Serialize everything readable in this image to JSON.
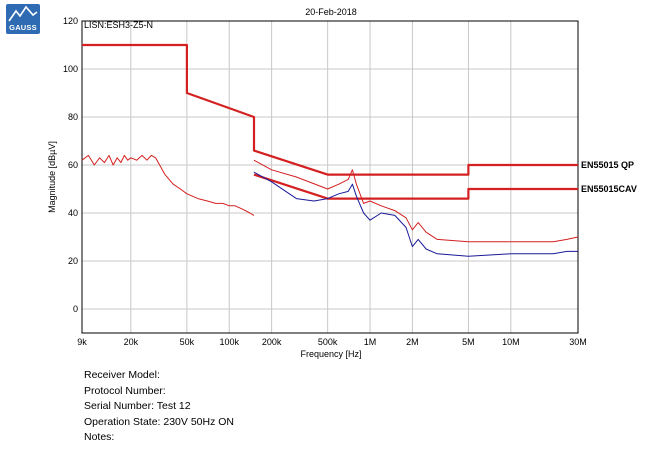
{
  "logo": {
    "text": "GAUSS"
  },
  "header": {
    "date": "20-Feb-2018",
    "plot_label": "LISN:ESH3-Z5-N"
  },
  "info": {
    "receiver_model": "Receiver Model:",
    "protocol_number": "Protocol Number:",
    "serial_number": "Serial Number: Test 12",
    "operation_state": "Operation State: 230V 50Hz ON",
    "notes": "Notes:"
  },
  "colors": {
    "red": "#d42020",
    "blue": "#1a1a9a",
    "grid": "#c8c8c8"
  },
  "chart_data": {
    "type": "line",
    "title": "20-Feb-2018",
    "xlabel": "Frequency [Hz]",
    "ylabel": "Magnitude [dBµV]",
    "xscale": "log",
    "xlim": [
      9000,
      30000000
    ],
    "ylim": [
      -10,
      120
    ],
    "grid": true,
    "x_ticks": [
      {
        "v": 9000,
        "label": "9k"
      },
      {
        "v": 20000,
        "label": "20k"
      },
      {
        "v": 50000,
        "label": "50k"
      },
      {
        "v": 100000,
        "label": "100k"
      },
      {
        "v": 200000,
        "label": "200k"
      },
      {
        "v": 500000,
        "label": "500k"
      },
      {
        "v": 1000000,
        "label": "1M"
      },
      {
        "v": 2000000,
        "label": "2M"
      },
      {
        "v": 5000000,
        "label": "5M"
      },
      {
        "v": 10000000,
        "label": "10M"
      },
      {
        "v": 30000000,
        "label": "30M"
      }
    ],
    "y_ticks": [
      0,
      20,
      40,
      60,
      80,
      100,
      120
    ],
    "series": [
      {
        "name": "EN55015 QP",
        "role": "limit",
        "color": "#d42020",
        "x": [
          9000,
          50000,
          50000,
          150000,
          150000,
          500000,
          5000000,
          5000000,
          30000000
        ],
        "y": [
          110,
          110,
          90,
          80,
          66,
          56,
          56,
          60,
          60
        ]
      },
      {
        "name": "EN55015CAV",
        "role": "limit",
        "color": "#d42020",
        "x": [
          150000,
          500000,
          5000000,
          5000000,
          30000000
        ],
        "y": [
          56,
          46,
          46,
          50,
          50
        ]
      },
      {
        "role": "peak",
        "color": "#d42020",
        "x": [
          9000,
          10000,
          11000,
          12000,
          13000,
          14000,
          15000,
          16000,
          17000,
          18000,
          19000,
          20000,
          22000,
          24000,
          26000,
          28000,
          30000,
          35000,
          40000,
          45000,
          50000,
          60000,
          70000,
          80000,
          90000,
          100000,
          110000,
          120000,
          130000,
          140000,
          150000
        ],
        "y": [
          62,
          64,
          60,
          63,
          61,
          64,
          60,
          63,
          61,
          64,
          62,
          63,
          62,
          64,
          62,
          64,
          63,
          56,
          52,
          50,
          48,
          46,
          45,
          44,
          44,
          43,
          43,
          42,
          41,
          40,
          39
        ]
      },
      {
        "role": "qp",
        "color": "#d42020",
        "x": [
          150000,
          200000,
          300000,
          500000,
          600000,
          700000,
          750000,
          800000,
          900000,
          1000000,
          1200000,
          1500000,
          1800000,
          2000000,
          2200000,
          2500000,
          3000000,
          5000000,
          10000000,
          20000000,
          25000000,
          30000000
        ],
        "y": [
          62,
          58,
          55,
          50,
          52,
          54,
          58,
          52,
          44,
          45,
          43,
          41,
          38,
          33,
          36,
          32,
          29,
          28,
          28,
          28,
          29,
          30
        ]
      },
      {
        "role": "avg",
        "color": "#1a1a9a",
        "x": [
          150000,
          200000,
          300000,
          400000,
          500000,
          600000,
          700000,
          750000,
          800000,
          900000,
          1000000,
          1200000,
          1500000,
          1800000,
          2000000,
          2200000,
          2500000,
          3000000,
          5000000,
          10000000,
          20000000,
          25000000,
          30000000
        ],
        "y": [
          57,
          53,
          46,
          45,
          46,
          48,
          49,
          52,
          47,
          40,
          37,
          40,
          39,
          34,
          26,
          29,
          25,
          23,
          22,
          23,
          23,
          24,
          24
        ]
      }
    ],
    "annotations": [
      {
        "text": "EN55015 QP",
        "x": 30000000,
        "y": 60
      },
      {
        "text": "EN55015CAV",
        "x": 30000000,
        "y": 50
      }
    ]
  }
}
